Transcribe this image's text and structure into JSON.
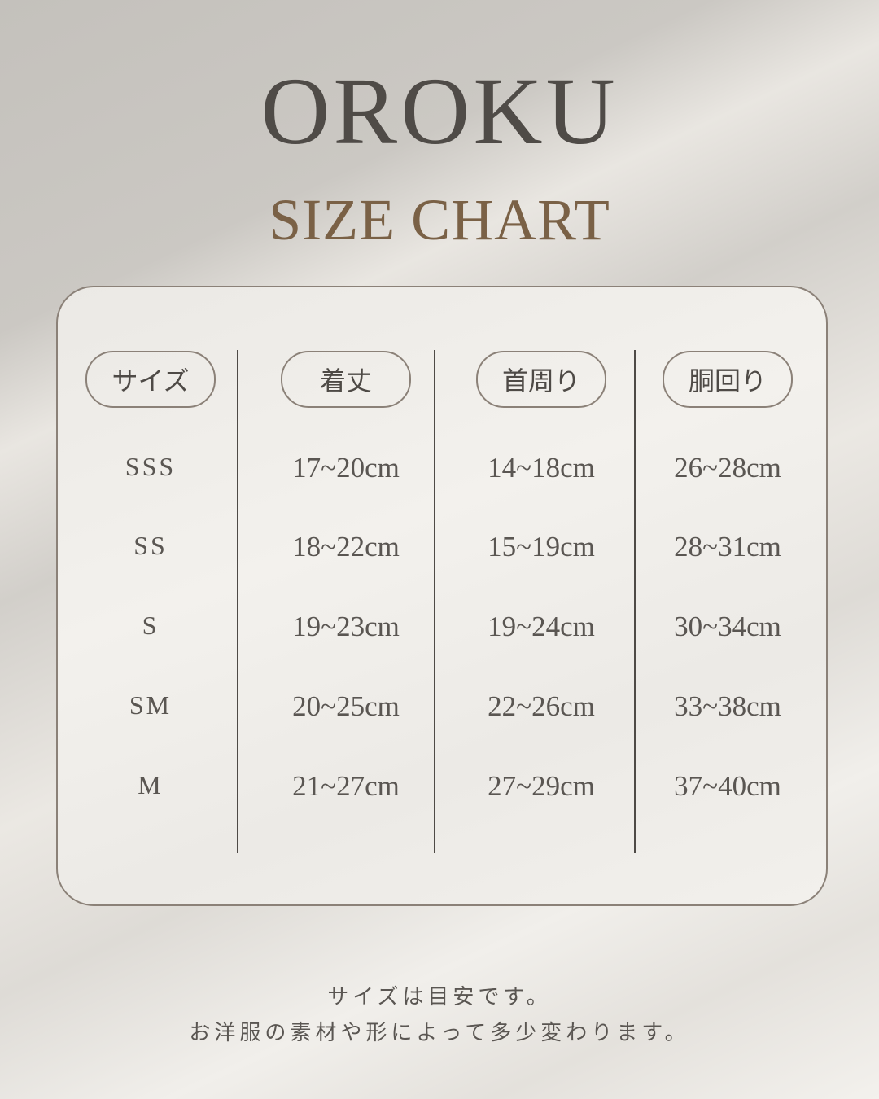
{
  "brand": "OROKU",
  "title": "SIZE CHART",
  "table": {
    "headers": [
      "サイズ",
      "着丈",
      "首周り",
      "胴回り"
    ],
    "rows": [
      [
        "SSS",
        "17~20cm",
        "14~18cm",
        "26~28cm"
      ],
      [
        "SS",
        "18~22cm",
        "15~19cm",
        "28~31cm"
      ],
      [
        "S",
        "19~23cm",
        "19~24cm",
        "30~34cm"
      ],
      [
        "SM",
        "20~25cm",
        "22~26cm",
        "33~38cm"
      ],
      [
        "M",
        "21~27cm",
        "27~29cm",
        "37~40cm"
      ]
    ]
  },
  "notes": [
    "サイズは目安です。",
    "お洋服の素材や形によって多少変わります。"
  ],
  "colors": {
    "brand": "#4f4b47",
    "title": "#7a6146",
    "border": "#8b8178"
  }
}
